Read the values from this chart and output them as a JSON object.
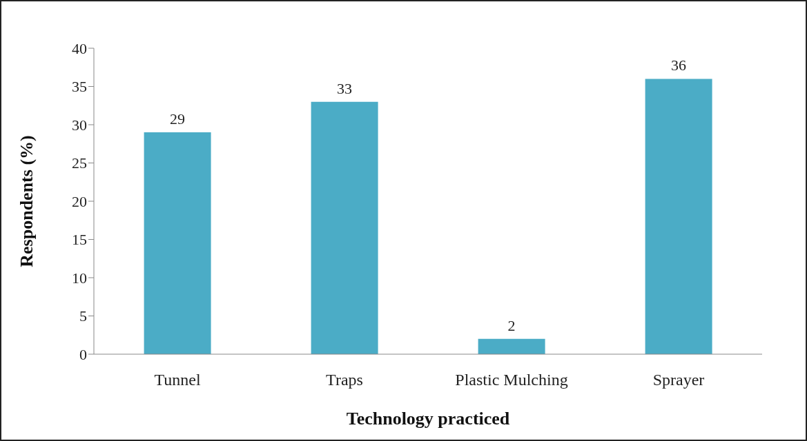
{
  "chart_data": {
    "type": "bar",
    "xlabel": "Technology practiced",
    "ylabel": "Respondents (%)",
    "categories": [
      "Tunnel",
      "Traps",
      "Plastic Mulching",
      "Sprayer"
    ],
    "values": [
      29,
      33,
      2,
      36
    ],
    "color": "#4bacc6",
    "ylim": [
      0,
      40
    ],
    "yticks": [
      0,
      5,
      10,
      15,
      20,
      25,
      30,
      35,
      40
    ],
    "grid": false,
    "data_labels": true
  }
}
